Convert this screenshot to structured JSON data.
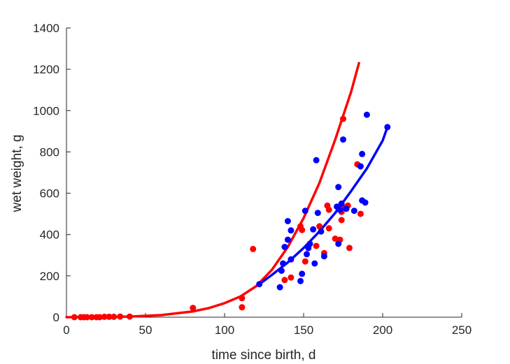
{
  "chart_data": {
    "type": "scatter",
    "xlabel": "time since birth, d",
    "ylabel": "wet weight, g",
    "xlim": [
      0,
      250
    ],
    "ylim": [
      0,
      1400
    ],
    "xticks": [
      "0",
      "50",
      "100",
      "150",
      "200",
      "250"
    ],
    "yticks": [
      "0",
      "200",
      "400",
      "600",
      "800",
      "1000",
      "1200",
      "1400"
    ],
    "grid": false,
    "box": false,
    "series": [
      {
        "color": "#ff0000",
        "points": [
          [
            5,
            0
          ],
          [
            9,
            0
          ],
          [
            11,
            0
          ],
          [
            13,
            0
          ],
          [
            16,
            0
          ],
          [
            19,
            0
          ],
          [
            21,
            0
          ],
          [
            24,
            2
          ],
          [
            27,
            2
          ],
          [
            30,
            2
          ],
          [
            34,
            3
          ],
          [
            40,
            3
          ],
          [
            80,
            45
          ],
          [
            111,
            48
          ],
          [
            111,
            92
          ],
          [
            118,
            330
          ],
          [
            138,
            180
          ],
          [
            142,
            192
          ],
          [
            148,
            440
          ],
          [
            149,
            422
          ],
          [
            151,
            270
          ],
          [
            158,
            345
          ],
          [
            160,
            440
          ],
          [
            163,
            310
          ],
          [
            165,
            540
          ],
          [
            166,
            520
          ],
          [
            166,
            430
          ],
          [
            170,
            380
          ],
          [
            173,
            375
          ],
          [
            174,
            470
          ],
          [
            174,
            510
          ],
          [
            175,
            960
          ],
          [
            176,
            530
          ],
          [
            178,
            540
          ],
          [
            179,
            335
          ],
          [
            184,
            740
          ],
          [
            186,
            500
          ]
        ],
        "curve": [
          [
            0,
            0
          ],
          [
            20,
            0.5
          ],
          [
            40,
            3
          ],
          [
            60,
            10
          ],
          [
            80,
            28
          ],
          [
            90,
            44
          ],
          [
            100,
            68
          ],
          [
            110,
            100
          ],
          [
            120,
            150
          ],
          [
            130,
            230
          ],
          [
            140,
            340
          ],
          [
            150,
            480
          ],
          [
            160,
            650
          ],
          [
            170,
            860
          ],
          [
            180,
            1090
          ],
          [
            185,
            1230
          ]
        ]
      },
      {
        "color": "#0000ff",
        "points": [
          [
            122,
            160
          ],
          [
            135,
            145
          ],
          [
            136,
            225
          ],
          [
            137,
            260
          ],
          [
            138,
            340
          ],
          [
            140,
            375
          ],
          [
            140,
            465
          ],
          [
            142,
            420
          ],
          [
            142,
            280
          ],
          [
            148,
            175
          ],
          [
            149,
            210
          ],
          [
            151,
            515
          ],
          [
            152,
            305
          ],
          [
            153,
            335
          ],
          [
            154,
            355
          ],
          [
            156,
            425
          ],
          [
            157,
            260
          ],
          [
            158,
            760
          ],
          [
            159,
            505
          ],
          [
            161,
            415
          ],
          [
            163,
            295
          ],
          [
            171,
            535
          ],
          [
            172,
            355
          ],
          [
            172,
            630
          ],
          [
            173,
            520
          ],
          [
            174,
            550
          ],
          [
            175,
            860
          ],
          [
            177,
            525
          ],
          [
            182,
            515
          ],
          [
            186,
            730
          ],
          [
            187,
            790
          ],
          [
            187,
            565
          ],
          [
            189,
            555
          ],
          [
            190,
            980
          ],
          [
            203,
            920
          ]
        ],
        "curve": [
          [
            122,
            160
          ],
          [
            130,
            205
          ],
          [
            140,
            265
          ],
          [
            150,
            335
          ],
          [
            160,
            415
          ],
          [
            170,
            505
          ],
          [
            180,
            610
          ],
          [
            190,
            720
          ],
          [
            200,
            855
          ],
          [
            203,
            920
          ]
        ]
      }
    ]
  }
}
